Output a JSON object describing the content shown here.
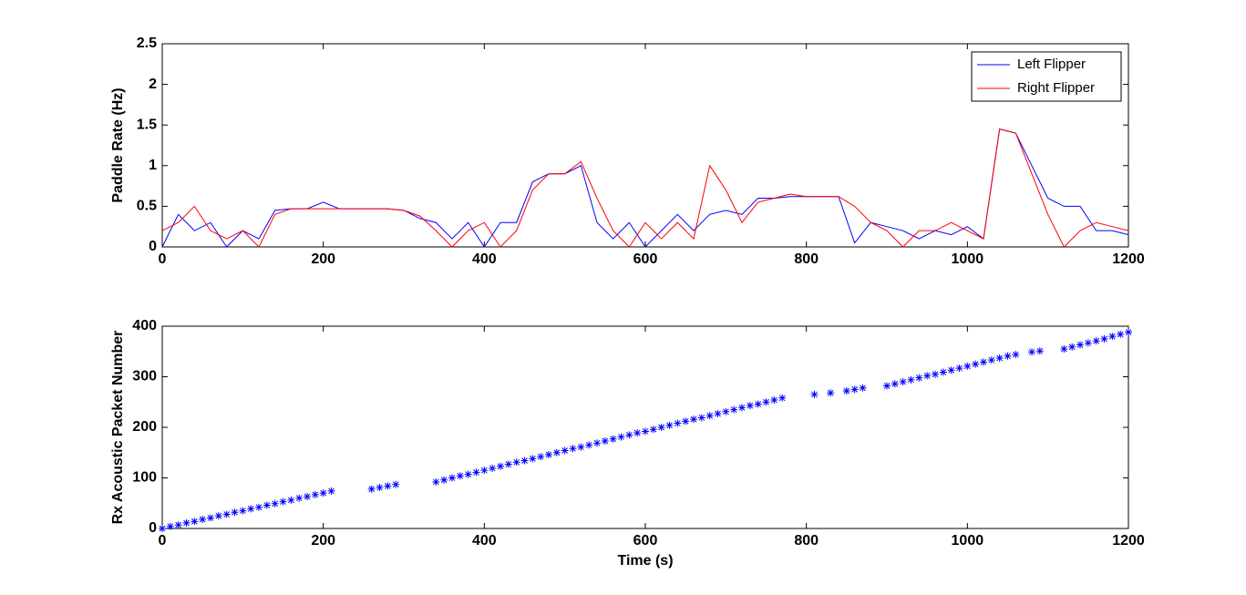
{
  "chart_data": [
    {
      "type": "line",
      "ylabel": "Paddle Rate (Hz)",
      "x": [
        0,
        20,
        40,
        60,
        80,
        100,
        120,
        140,
        160,
        180,
        200,
        220,
        240,
        260,
        280,
        300,
        320,
        340,
        360,
        380,
        400,
        420,
        440,
        460,
        480,
        500,
        520,
        540,
        560,
        580,
        600,
        620,
        640,
        660,
        680,
        700,
        720,
        740,
        760,
        780,
        800,
        820,
        840,
        860,
        880,
        900,
        920,
        940,
        960,
        980,
        1000,
        1020,
        1040,
        1060,
        1080,
        1100,
        1120,
        1140,
        1160,
        1180,
        1200
      ],
      "series": [
        {
          "name": "Left Flipper",
          "color": "#0000ff",
          "values": [
            0,
            0.4,
            0.2,
            0.3,
            0,
            0.2,
            0.1,
            0.45,
            0.47,
            0.47,
            0.55,
            0.47,
            0.47,
            0.47,
            0.47,
            0.45,
            0.35,
            0.3,
            0.1,
            0.3,
            0,
            0.3,
            0.3,
            0.8,
            0.9,
            0.9,
            1.0,
            0.3,
            0.1,
            0.3,
            0,
            0.2,
            0.4,
            0.2,
            0.4,
            0.45,
            0.4,
            0.6,
            0.6,
            0.62,
            0.62,
            0.62,
            0.62,
            0.05,
            0.3,
            0.25,
            0.2,
            0.1,
            0.2,
            0.15,
            0.25,
            0.1,
            1.45,
            1.4,
            1.0,
            0.6,
            0.5,
            0.5,
            0.2,
            0.2,
            0.15
          ]
        },
        {
          "name": "Right Flipper",
          "color": "#ff0000",
          "values": [
            0.2,
            0.3,
            0.5,
            0.2,
            0.1,
            0.2,
            0,
            0.4,
            0.47,
            0.47,
            0.47,
            0.47,
            0.47,
            0.47,
            0.47,
            0.45,
            0.38,
            0.2,
            0,
            0.2,
            0.3,
            0,
            0.2,
            0.7,
            0.9,
            0.9,
            1.05,
            0.6,
            0.2,
            0,
            0.3,
            0.1,
            0.3,
            0.1,
            1.0,
            0.7,
            0.3,
            0.55,
            0.6,
            0.65,
            0.62,
            0.62,
            0.62,
            0.5,
            0.3,
            0.2,
            0,
            0.2,
            0.2,
            0.3,
            0.2,
            0.1,
            1.45,
            1.4,
            0.9,
            0.4,
            0,
            0.2,
            0.3,
            0.25,
            0.2
          ]
        }
      ],
      "xlim": [
        0,
        1200
      ],
      "xticks": [
        0,
        200,
        400,
        600,
        800,
        1000,
        1200
      ],
      "ylim": [
        0,
        2.5
      ],
      "yticks": [
        0,
        0.5,
        1,
        1.5,
        2,
        2.5
      ],
      "legend": "upper right"
    },
    {
      "type": "scatter",
      "xlabel": "Time (s)",
      "ylabel": "Rx Acoustic Packet Number",
      "color": "#0000ff",
      "x": [
        0,
        10,
        20,
        30,
        40,
        50,
        60,
        70,
        80,
        90,
        100,
        110,
        120,
        130,
        140,
        150,
        160,
        170,
        180,
        190,
        200,
        210,
        260,
        270,
        280,
        290,
        340,
        350,
        360,
        370,
        380,
        390,
        400,
        410,
        420,
        430,
        440,
        450,
        460,
        470,
        480,
        490,
        500,
        510,
        520,
        530,
        540,
        550,
        560,
        570,
        580,
        590,
        600,
        610,
        620,
        630,
        640,
        650,
        660,
        670,
        680,
        690,
        700,
        710,
        720,
        730,
        740,
        750,
        760,
        770,
        810,
        830,
        850,
        860,
        870,
        900,
        910,
        920,
        930,
        940,
        950,
        960,
        970,
        980,
        990,
        1000,
        1010,
        1020,
        1030,
        1040,
        1050,
        1060,
        1080,
        1090,
        1120,
        1130,
        1140,
        1150,
        1160,
        1170,
        1180,
        1190,
        1200
      ],
      "y": [
        0,
        4,
        7,
        11,
        14,
        18,
        21,
        25,
        28,
        32,
        35,
        39,
        42,
        46,
        49,
        53,
        56,
        60,
        63,
        67,
        70,
        74,
        78,
        81,
        84,
        87,
        92,
        96,
        100,
        104,
        107,
        111,
        115,
        119,
        123,
        127,
        131,
        134,
        138,
        142,
        146,
        150,
        154,
        158,
        161,
        165,
        169,
        173,
        177,
        181,
        185,
        189,
        192,
        196,
        200,
        204,
        208,
        212,
        216,
        219,
        223,
        227,
        231,
        235,
        239,
        243,
        246,
        250,
        254,
        258,
        265,
        268,
        272,
        275,
        278,
        282,
        286,
        290,
        294,
        298,
        302,
        305,
        309,
        313,
        317,
        321,
        325,
        329,
        333,
        337,
        341,
        344,
        349,
        351,
        355,
        359,
        363,
        367,
        371,
        375,
        380,
        384,
        388
      ],
      "xlim": [
        0,
        1200
      ],
      "xticks": [
        0,
        200,
        400,
        600,
        800,
        1000,
        1200
      ],
      "ylim": [
        0,
        400
      ],
      "yticks": [
        0,
        100,
        200,
        300,
        400
      ]
    }
  ]
}
